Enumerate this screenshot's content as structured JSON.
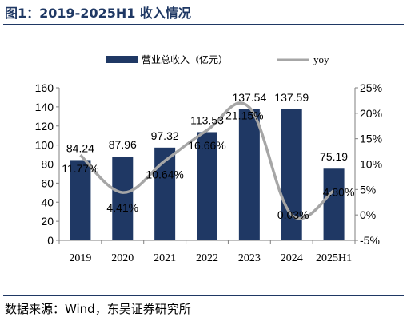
{
  "figure": {
    "title": "图1：2019-2025H1 收入情况",
    "source": "数据来源：Wind，东吴证券研究所"
  },
  "chart_data": {
    "type": "bar",
    "categories": [
      "2019",
      "2020",
      "2021",
      "2022",
      "2023",
      "2024",
      "2025H1"
    ],
    "series": [
      {
        "name": "营业总收入（亿元）",
        "type": "bar",
        "axis": "left",
        "values": [
          84.24,
          87.96,
          97.32,
          113.53,
          137.54,
          137.59,
          75.19
        ],
        "labels": [
          "84.24",
          "87.96",
          "97.32",
          "113.53",
          "137.54",
          "137.59",
          "75.19"
        ],
        "color": "#1f3864"
      },
      {
        "name": "yoy",
        "type": "line",
        "axis": "right",
        "values": [
          11.77,
          4.41,
          10.64,
          16.66,
          21.15,
          0.03,
          4.8
        ],
        "labels": [
          "11.77%",
          "4.41%",
          "10.64%",
          "16.66%",
          "21.15%",
          "0.03%",
          "4.80%"
        ],
        "color": "#a6a6a6"
      }
    ],
    "y_left": {
      "min": 0,
      "max": 160,
      "step": 20,
      "ticks": [
        "0",
        "20",
        "40",
        "60",
        "80",
        "100",
        "120",
        "140",
        "160"
      ]
    },
    "y_right": {
      "min": -5,
      "max": 25,
      "step": 5,
      "ticks": [
        "-5%",
        "0%",
        "5%",
        "10%",
        "15%",
        "20%",
        "25%"
      ]
    },
    "legend": "top",
    "grid": false
  }
}
